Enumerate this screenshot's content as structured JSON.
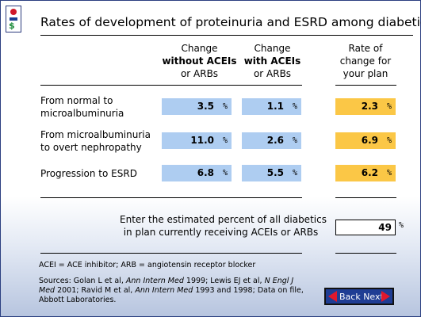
{
  "title": "Rates of development of proteinuria and ESRD among diabetics",
  "columns": {
    "without": [
      "Change",
      "without ACEIs",
      "or ARBs"
    ],
    "with": [
      "Change",
      "with ACEIs",
      "or ARBs"
    ],
    "plan": [
      "Rate of",
      "change for",
      "your plan"
    ]
  },
  "rows": [
    {
      "label": [
        "From normal to",
        "microalbuminuria"
      ],
      "without": "3.5",
      "with": "1.1",
      "plan": "2.3"
    },
    {
      "label": [
        "From microalbuminuria",
        "to overt nephropathy"
      ],
      "without": "11.0",
      "with": "2.6",
      "plan": "6.9"
    },
    {
      "label": [
        "Progression to ESRD"
      ],
      "without": "6.8",
      "with": "5.5",
      "plan": "6.2"
    }
  ],
  "percent_sign": "%",
  "prompt": [
    "Enter the estimated percent of all diabetics",
    "in plan currently receiving ACEIs or ARBs"
  ],
  "input_value": "49",
  "abbreviations": "ACEI = ACE inhibitor; ARB = angiotensin receptor blocker",
  "sources": {
    "line1_a": "Sources: Golan L et al, ",
    "line1_b": "Ann Intern Med",
    "line1_c": " 1999; Lewis EJ et al, ",
    "line1_d": "N Engl J",
    "line2_a": "Med",
    "line2_b": " 2001; Ravid M et al, ",
    "line2_c": "Ann Intern Med",
    "line2_d": " 1993 and 1998; Data on file,",
    "line3": "Abbott Laboratories."
  },
  "nav": {
    "label": "Back Next"
  },
  "colors": {
    "blue_cell": "#aecdf1",
    "gold_cell": "#fbc746",
    "nav_bg": "#1f3d94",
    "arrow": "#e0182d"
  }
}
